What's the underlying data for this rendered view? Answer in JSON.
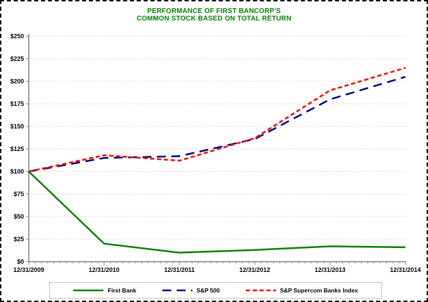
{
  "title": {
    "line1": "PERFORMANCE OF FIRST BANCORP'S",
    "line2": "COMMON STOCK BASED ON TOTAL RETURN",
    "color": "#008000"
  },
  "chart_data": {
    "type": "line",
    "title": "PERFORMANCE OF FIRST BANCORP'S COMMON STOCK BASED ON TOTAL RETURN",
    "x_labels": [
      "12/31/2009",
      "12/31/2010",
      "12/31/2011",
      "12/31/2012",
      "12/31/2013",
      "12/31/2014"
    ],
    "series": [
      {
        "name": "First Bank",
        "color": "#008000",
        "dash": "solid",
        "values": [
          100,
          20,
          10,
          13,
          17,
          16
        ]
      },
      {
        "name": "S&P 500",
        "color": "#000080",
        "dash": "long-dash",
        "values": [
          100,
          115,
          117,
          136,
          180,
          205
        ]
      },
      {
        "name": "S&P Supercom Banks Index",
        "color": "#FF0000",
        "dash": "short-dash",
        "values": [
          100,
          118,
          112,
          137,
          190,
          215
        ]
      }
    ],
    "ylim": [
      0,
      250
    ],
    "ytick_step": 25,
    "ytick_labels": [
      "$0",
      "$25",
      "$50",
      "$75",
      "$100",
      "$125",
      "$150",
      "$175",
      "$200",
      "$225",
      "$250"
    ],
    "x_minor_ticks_per_interval": 12,
    "grid": "horizontal-dotted",
    "legend_position": "bottom",
    "colors": {
      "axis": "#808080",
      "grid": "#BFBFBF",
      "text": "#000000"
    }
  }
}
